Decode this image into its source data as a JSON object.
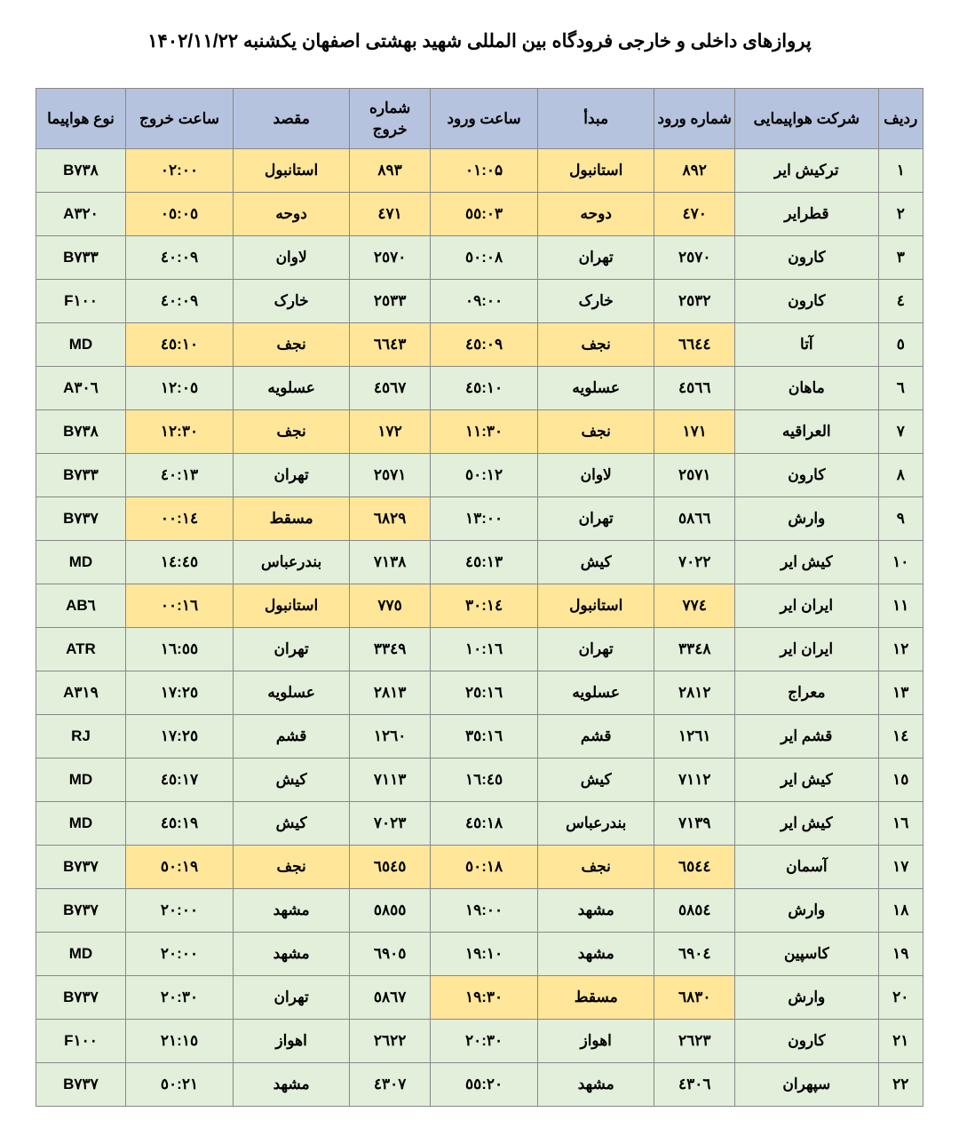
{
  "title": "پروازهای داخلی و خارجی فرودگاه بین المللی شهید بهشتی اصفهان  یکشنبه ۱۴۰۲/۱۱/۲۲",
  "colors": {
    "header_bg": "#b6c3de",
    "green_bg": "#e2efda",
    "yellow_bg": "#ffe699",
    "border": "#888888"
  },
  "columns": [
    "ردیف",
    "شرکت هواپیمایی",
    "شماره ورود",
    "مبدأ",
    "ساعت ورود",
    "شماره خروج",
    "مقصد",
    "ساعت خروج",
    "نوع هواپیما"
  ],
  "rows": [
    {
      "n": "۱",
      "airline": "ترکیش ایر",
      "in_no": "۸۹۲",
      "origin": "استانبول",
      "in_t": "۰۱:۰۵",
      "out_no": "۸۹۳",
      "dest": "استانبول",
      "out_t": "۰۲:۰۰",
      "type": "B۷۳۸",
      "intl": true
    },
    {
      "n": "۲",
      "airline": "قطرایر",
      "in_no": "٤۷۰",
      "origin": "دوحه",
      "in_t": "۰۳:٥٥",
      "out_no": "٤۷۱",
      "dest": "دوحه",
      "out_t": "۰٥:۰٥",
      "type": "A۳۲۰",
      "intl": true
    },
    {
      "n": "۳",
      "airline": "کارون",
      "in_no": "۲٥۷۰",
      "origin": "تهران",
      "in_t": "۰۸:٥۰",
      "out_no": "۲٥۷۰",
      "dest": "لاوان",
      "out_t": "۰۹:٤۰",
      "type": "B۷۳۳",
      "intl": false
    },
    {
      "n": "٤",
      "airline": "کارون",
      "in_no": "۲٥۳۲",
      "origin": "خارک",
      "in_t": "۰۹:۰۰",
      "out_no": "۲٥۳۳",
      "dest": "خارک",
      "out_t": "۰۹:٤۰",
      "type": "F۱۰۰",
      "intl": false
    },
    {
      "n": "٥",
      "airline": "آتا",
      "in_no": "٦٦٤٤",
      "origin": "نجف",
      "in_t": "۰۹:٤٥",
      "out_no": "٦٦٤۳",
      "dest": "نجف",
      "out_t": "۱۰:٤٥",
      "type": "MD",
      "intl": true
    },
    {
      "n": "٦",
      "airline": "ماهان",
      "in_no": "٤٥٦٦",
      "origin": "عسلویه",
      "in_t": "۱۰:٤٥",
      "out_no": "٤٥٦۷",
      "dest": "عسلویه",
      "out_t": "۱۲:۰٥",
      "type": "A۳۰٦",
      "intl": false
    },
    {
      "n": "۷",
      "airline": "العراقیه",
      "in_no": "۱۷۱",
      "origin": "نجف",
      "in_t": "۱۱:۳۰",
      "out_no": "۱۷۲",
      "dest": "نجف",
      "out_t": "۱۲:۳۰",
      "type": "B۷۳۸",
      "intl": true
    },
    {
      "n": "۸",
      "airline": "کارون",
      "in_no": "۲٥۷۱",
      "origin": "لاوان",
      "in_t": "۱۲:٥۰",
      "out_no": "۲٥۷۱",
      "dest": "تهران",
      "out_t": "۱۳:٤۰",
      "type": "B۷۳۳",
      "intl": false
    },
    {
      "n": "۹",
      "airline": "وارش",
      "in_no": "٥۸٦٦",
      "origin": "تهران",
      "in_t": "۱۳:۰۰",
      "out_no": "٦۸۲۹",
      "dest": "مسقط",
      "out_t": "۱٤:۰۰",
      "type": "B۷۳۷",
      "intl": false,
      "out_intl": true
    },
    {
      "n": "۱۰",
      "airline": "کیش ایر",
      "in_no": "۷۰۲۲",
      "origin": "کیش",
      "in_t": "۱۳:٤٥",
      "out_no": "۷۱۳۸",
      "dest": "بندرعباس",
      "out_t": "۱٤:٤٥",
      "type": "MD",
      "intl": false
    },
    {
      "n": "۱۱",
      "airline": "ایران ایر",
      "in_no": "۷۷٤",
      "origin": "استانبول",
      "in_t": "۱٤:۳۰",
      "out_no": "۷۷٥",
      "dest": "استانبول",
      "out_t": "۱٦:۰۰",
      "type": "AB٦",
      "intl": true
    },
    {
      "n": "۱۲",
      "airline": "ایران ایر",
      "in_no": "۳۳٤۸",
      "origin": "تهران",
      "in_t": "۱٦:۱۰",
      "out_no": "۳۳٤۹",
      "dest": "تهران",
      "out_t": "۱٦:٥٥",
      "type": "ATR",
      "intl": false
    },
    {
      "n": "۱۳",
      "airline": "معراج",
      "in_no": "۲۸۱۲",
      "origin": "عسلویه",
      "in_t": "۱٦:۲٥",
      "out_no": "۲۸۱۳",
      "dest": "عسلویه",
      "out_t": "۱۷:۲٥",
      "type": "A۳۱۹",
      "intl": false
    },
    {
      "n": "۱٤",
      "airline": "قشم ایر",
      "in_no": "۱۲٦۱",
      "origin": "قشم",
      "in_t": "۱٦:۳٥",
      "out_no": "۱۲٦۰",
      "dest": "قشم",
      "out_t": "۱۷:۲٥",
      "type": "RJ",
      "intl": false
    },
    {
      "n": "۱٥",
      "airline": "کیش ایر",
      "in_no": "۷۱۱۲",
      "origin": "کیش",
      "in_t": "۱٦:٤٥",
      "out_no": "۷۱۱۳",
      "dest": "کیش",
      "out_t": "۱۷:٤٥",
      "type": "MD",
      "intl": false
    },
    {
      "n": "۱٦",
      "airline": "کیش ایر",
      "in_no": "۷۱۳۹",
      "origin": "بندرعباس",
      "in_t": "۱۸:٤٥",
      "out_no": "۷۰۲۳",
      "dest": "کیش",
      "out_t": "۱۹:٤٥",
      "type": "MD",
      "intl": false
    },
    {
      "n": "۱۷",
      "airline": "آسمان",
      "in_no": "٦٥٤٤",
      "origin": "نجف",
      "in_t": "۱۸:٥۰",
      "out_no": "٦٥٤٥",
      "dest": "نجف",
      "out_t": "۱۹:٥۰",
      "type": "B۷۳۷",
      "intl": true
    },
    {
      "n": "۱۸",
      "airline": "وارش",
      "in_no": "٥۸٥٤",
      "origin": "مشهد",
      "in_t": "۱۹:۰۰",
      "out_no": "٥۸٥٥",
      "dest": "مشهد",
      "out_t": "۲۰:۰۰",
      "type": "B۷۳۷",
      "intl": false
    },
    {
      "n": "۱۹",
      "airline": "کاسپین",
      "in_no": "٦۹۰٤",
      "origin": "مشهد",
      "in_t": "۱۹:۱۰",
      "out_no": "٦۹۰٥",
      "dest": "مشهد",
      "out_t": "۲۰:۰۰",
      "type": "MD",
      "intl": false
    },
    {
      "n": "۲۰",
      "airline": "وارش",
      "in_no": "٦۸۳۰",
      "origin": "مسقط",
      "in_t": "۱۹:۳۰",
      "out_no": "٥۸٦۷",
      "dest": "تهران",
      "out_t": "۲۰:۳۰",
      "type": "B۷۳۷",
      "intl": false,
      "in_intl": true
    },
    {
      "n": "۲۱",
      "airline": "کارون",
      "in_no": "۲٦۲۳",
      "origin": "اهواز",
      "in_t": "۲۰:۳۰",
      "out_no": "۲٦۲۲",
      "dest": "اهواز",
      "out_t": "۲۱:۱٥",
      "type": "F۱۰۰",
      "intl": false
    },
    {
      "n": "۲۲",
      "airline": "سپهران",
      "in_no": "٤۳۰٦",
      "origin": "مشهد",
      "in_t": "۲۰:٥٥",
      "out_no": "٤۳۰۷",
      "dest": "مشهد",
      "out_t": "۲۱:٥۰",
      "type": "B۷۳۷",
      "intl": false
    }
  ]
}
